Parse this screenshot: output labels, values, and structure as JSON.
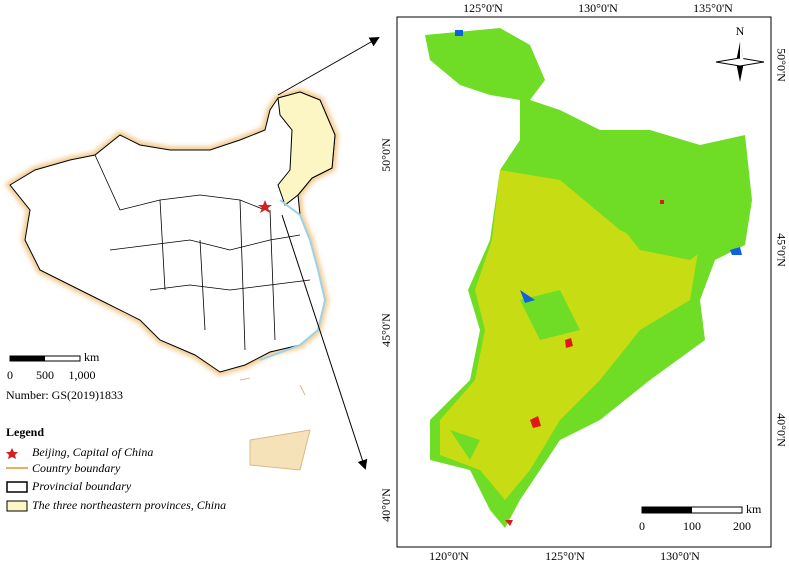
{
  "left_map": {
    "scale_bar": {
      "unit": "km",
      "labels": [
        "0",
        "500",
        "1,000"
      ]
    },
    "number": "Number:  GS(2019)1833",
    "legend": {
      "title": "Legend",
      "items": [
        "Beijing, Capital of China",
        "Country boundary",
        "Provincial boundary",
        "The three northeastern provinces, China"
      ]
    }
  },
  "right_map": {
    "top_labels": [
      "125°0'N",
      "130°0'N",
      "135°0'N"
    ],
    "right_labels": [
      "50°0'N",
      "45°0'N",
      "40°0'N"
    ],
    "left_labels": [
      "50°0'N",
      "45°0'N",
      "40°0'N"
    ],
    "bottom_labels": [
      "120°0'N",
      "125°0'N",
      "130°0'N"
    ],
    "north": "N",
    "scale_bar": {
      "unit": "km",
      "labels": [
        "0",
        "100",
        "200"
      ]
    }
  }
}
